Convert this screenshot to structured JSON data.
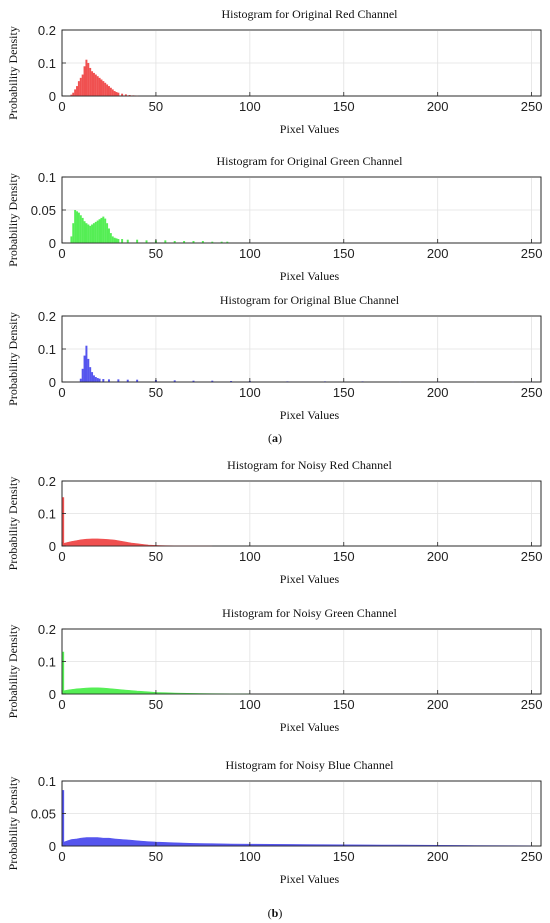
{
  "chart_data": [
    {
      "type": "bar",
      "title": "Histogram for Original Red Channel",
      "xlabel": "Pixel Values",
      "ylabel": "Probability Density",
      "xlim": [
        0,
        255
      ],
      "ylim": [
        0,
        0.2
      ],
      "xticks": [
        "0",
        "50",
        "100",
        "150",
        "200",
        "250"
      ],
      "yticks": [
        "0",
        "0.1",
        "0.2"
      ],
      "grid": true,
      "color": "#f05050",
      "series": [
        {
          "x": [
            5,
            6,
            7,
            8,
            9,
            10,
            11,
            12,
            13,
            14,
            15,
            16,
            17,
            18,
            19,
            20,
            21,
            22,
            23,
            24,
            25,
            26,
            27,
            28,
            29,
            30,
            32,
            34,
            36,
            38,
            40
          ],
          "values": [
            0.004,
            0.01,
            0.02,
            0.03,
            0.045,
            0.055,
            0.065,
            0.09,
            0.11,
            0.1,
            0.085,
            0.075,
            0.07,
            0.065,
            0.06,
            0.055,
            0.05,
            0.045,
            0.04,
            0.035,
            0.03,
            0.025,
            0.02,
            0.015,
            0.012,
            0.01,
            0.007,
            0.005,
            0.003,
            0.002,
            0.001
          ]
        }
      ]
    },
    {
      "type": "bar",
      "title": "Histogram for Original Green Channel",
      "xlabel": "Pixel Values",
      "ylabel": "Probability Density",
      "xlim": [
        0,
        255
      ],
      "ylim": [
        0,
        0.1
      ],
      "xticks": [
        "0",
        "50",
        "100",
        "150",
        "200",
        "250"
      ],
      "yticks": [
        "0",
        "0.05",
        "0.1"
      ],
      "grid": true,
      "color": "#55ee55",
      "series": [
        {
          "x": [
            5,
            6,
            7,
            8,
            9,
            10,
            11,
            12,
            13,
            14,
            15,
            16,
            17,
            18,
            19,
            20,
            21,
            22,
            23,
            24,
            25,
            26,
            27,
            28,
            29,
            30,
            32,
            35,
            40,
            45,
            50,
            55,
            60,
            65,
            70,
            75,
            80,
            85,
            88
          ],
          "values": [
            0.01,
            0.03,
            0.05,
            0.048,
            0.046,
            0.042,
            0.038,
            0.033,
            0.03,
            0.028,
            0.026,
            0.028,
            0.03,
            0.032,
            0.034,
            0.036,
            0.038,
            0.04,
            0.037,
            0.03,
            0.022,
            0.015,
            0.01,
            0.008,
            0.007,
            0.006,
            0.006,
            0.005,
            0.005,
            0.004,
            0.004,
            0.004,
            0.003,
            0.003,
            0.003,
            0.003,
            0.002,
            0.002,
            0.002
          ]
        }
      ]
    },
    {
      "type": "bar",
      "title": "Histogram for Original Blue Channel",
      "xlabel": "Pixel Values",
      "ylabel": "Probability Density",
      "xlim": [
        0,
        255
      ],
      "ylim": [
        0,
        0.2
      ],
      "xticks": [
        "0",
        "50",
        "100",
        "150",
        "200",
        "250"
      ],
      "yticks": [
        "0",
        "0.1",
        "0.2"
      ],
      "grid": true,
      "color": "#5555ee",
      "series": [
        {
          "x": [
            10,
            11,
            12,
            13,
            14,
            15,
            16,
            17,
            18,
            19,
            20,
            22,
            25,
            30,
            35,
            40,
            50,
            60,
            70,
            80,
            90,
            100,
            120,
            140,
            160,
            180,
            200,
            220,
            240,
            250
          ],
          "values": [
            0.01,
            0.04,
            0.08,
            0.11,
            0.07,
            0.045,
            0.03,
            0.02,
            0.015,
            0.012,
            0.01,
            0.009,
            0.008,
            0.008,
            0.007,
            0.007,
            0.006,
            0.005,
            0.004,
            0.004,
            0.003,
            0.003,
            0.002,
            0.002,
            0.002,
            0.001,
            0.001,
            0.001,
            0.001,
            0.001
          ]
        }
      ]
    },
    {
      "type": "area",
      "title": "Histogram for Noisy Red Channel",
      "xlabel": "Pixel Values",
      "ylabel": "Probability Density",
      "xlim": [
        0,
        255
      ],
      "ylim": [
        0,
        0.2
      ],
      "xticks": [
        "0",
        "50",
        "100",
        "150",
        "200",
        "250"
      ],
      "yticks": [
        "0",
        "0.1",
        "0.2"
      ],
      "grid": true,
      "color": "#f05050",
      "spike": {
        "x": 0.5,
        "value": 0.15
      },
      "series": [
        {
          "x": [
            1,
            3,
            5,
            8,
            10,
            13,
            16,
            19,
            22,
            25,
            28,
            31,
            34,
            37,
            40,
            43,
            46,
            50,
            55,
            60,
            70,
            80
          ],
          "values": [
            0.008,
            0.011,
            0.014,
            0.017,
            0.019,
            0.021,
            0.022,
            0.022,
            0.021,
            0.02,
            0.018,
            0.015,
            0.012,
            0.009,
            0.007,
            0.005,
            0.003,
            0.002,
            0.001,
            0.0005,
            0.0002,
            0.0001
          ]
        }
      ]
    },
    {
      "type": "area",
      "title": "Histogram for Noisy Green Channel",
      "xlabel": "Pixel Values",
      "ylabel": "Probability Density",
      "xlim": [
        0,
        255
      ],
      "ylim": [
        0,
        0.2
      ],
      "xticks": [
        "0",
        "50",
        "100",
        "150",
        "200",
        "250"
      ],
      "yticks": [
        "0",
        "0.1",
        "0.2"
      ],
      "grid": true,
      "color": "#55ee55",
      "spike": {
        "x": 0.5,
        "value": 0.13
      },
      "series": [
        {
          "x": [
            1,
            3,
            5,
            8,
            10,
            13,
            16,
            19,
            22,
            25,
            28,
            32,
            36,
            40,
            45,
            50,
            55,
            60,
            70,
            80,
            90,
            100
          ],
          "values": [
            0.01,
            0.012,
            0.014,
            0.016,
            0.017,
            0.018,
            0.019,
            0.019,
            0.018,
            0.017,
            0.015,
            0.013,
            0.011,
            0.009,
            0.007,
            0.005,
            0.004,
            0.003,
            0.002,
            0.001,
            0.0006,
            0.0003
          ]
        }
      ]
    },
    {
      "type": "area",
      "title": "Histogram for Noisy Blue Channel",
      "xlabel": "Pixel Values",
      "ylabel": "Probability Density",
      "xlim": [
        0,
        255
      ],
      "ylim": [
        0,
        0.1
      ],
      "xticks": [
        "0",
        "50",
        "100",
        "150",
        "200",
        "250"
      ],
      "yticks": [
        "0",
        "0.05",
        "0.1"
      ],
      "grid": true,
      "color": "#5555ee",
      "spike": {
        "x": 0.5,
        "value": 0.086
      },
      "series": [
        {
          "x": [
            1,
            3,
            5,
            8,
            10,
            13,
            16,
            19,
            22,
            25,
            28,
            32,
            36,
            40,
            45,
            50,
            60,
            70,
            80,
            90,
            100,
            120,
            140,
            160,
            180,
            200,
            220,
            240,
            250
          ],
          "values": [
            0.006,
            0.008,
            0.01,
            0.011,
            0.012,
            0.013,
            0.013,
            0.013,
            0.012,
            0.012,
            0.011,
            0.01,
            0.009,
            0.008,
            0.007,
            0.006,
            0.005,
            0.004,
            0.0035,
            0.003,
            0.0028,
            0.0024,
            0.002,
            0.0017,
            0.0014,
            0.0011,
            0.0008,
            0.0005,
            0.0003
          ]
        }
      ]
    }
  ],
  "panel_labels": [
    {
      "pre": "(",
      "letter": "a",
      "post": ")"
    },
    {
      "pre": "(",
      "letter": "b",
      "post": ")"
    }
  ]
}
